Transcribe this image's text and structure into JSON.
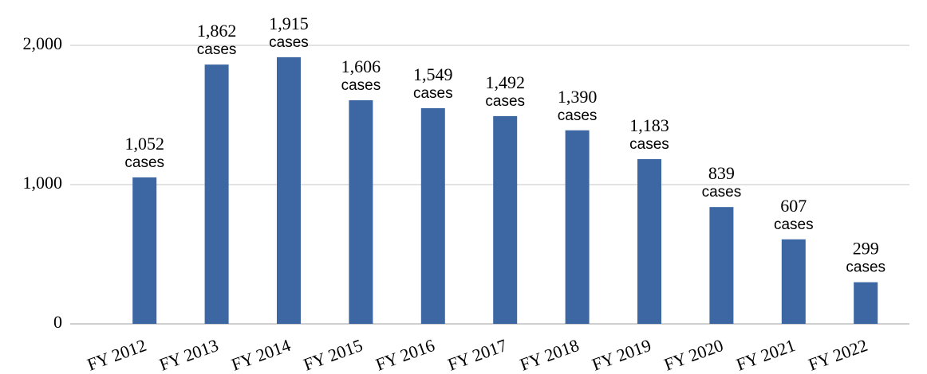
{
  "chart_data": {
    "type": "bar",
    "categories": [
      "FY 2012",
      "FY 2013",
      "FY 2014",
      "FY 2015",
      "FY 2016",
      "FY 2017",
      "FY 2018",
      "FY 2019",
      "FY 2020",
      "FY 2021",
      "FY 2022"
    ],
    "values": [
      1052,
      1862,
      1915,
      1606,
      1549,
      1492,
      1390,
      1183,
      839,
      607,
      299
    ],
    "value_labels": [
      "1,052",
      "1,862",
      "1,915",
      "1,606",
      "1,549",
      "1,492",
      "1,390",
      "1,183",
      "839",
      "607",
      "299"
    ],
    "value_label_unit": "cases",
    "color": "#3d67a3",
    "ylim": [
      0,
      2000
    ],
    "yticks": [
      0,
      {
        "value": 1000,
        "label": "1,000"
      },
      {
        "value": 2000,
        "label": "2,000"
      }
    ],
    "grid": true
  }
}
